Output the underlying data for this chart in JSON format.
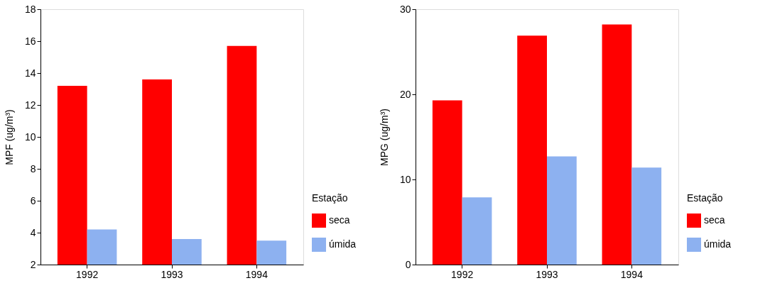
{
  "chart_data": [
    {
      "type": "bar",
      "ylabel": "MPF   (ug/m³)",
      "legend_title": "Estação",
      "legend": "bottom right",
      "grid": false,
      "categories": [
        "1992",
        "1993",
        "1994"
      ],
      "series": [
        {
          "name": "seca",
          "color": "#ff0000",
          "values": [
            13.2,
            13.6,
            15.7
          ]
        },
        {
          "name": "úmida",
          "color": "#8db1f0",
          "values": [
            4.2,
            3.6,
            3.5
          ]
        }
      ],
      "ylim": [
        2,
        18
      ],
      "yticks": [
        2,
        4,
        6,
        8,
        10,
        12,
        14,
        16,
        18
      ]
    },
    {
      "type": "bar",
      "ylabel": "MPG   (ug/m³)",
      "legend_title": "Estação",
      "legend": "bottom right",
      "grid": false,
      "categories": [
        "1992",
        "1993",
        "1994"
      ],
      "series": [
        {
          "name": "seca",
          "color": "#ff0000",
          "values": [
            19.3,
            26.9,
            28.2
          ]
        },
        {
          "name": "úmida",
          "color": "#8db1f0",
          "values": [
            7.9,
            12.7,
            11.4
          ]
        }
      ],
      "ylim": [
        0,
        30
      ],
      "yticks": [
        0,
        10,
        20,
        30
      ]
    }
  ]
}
